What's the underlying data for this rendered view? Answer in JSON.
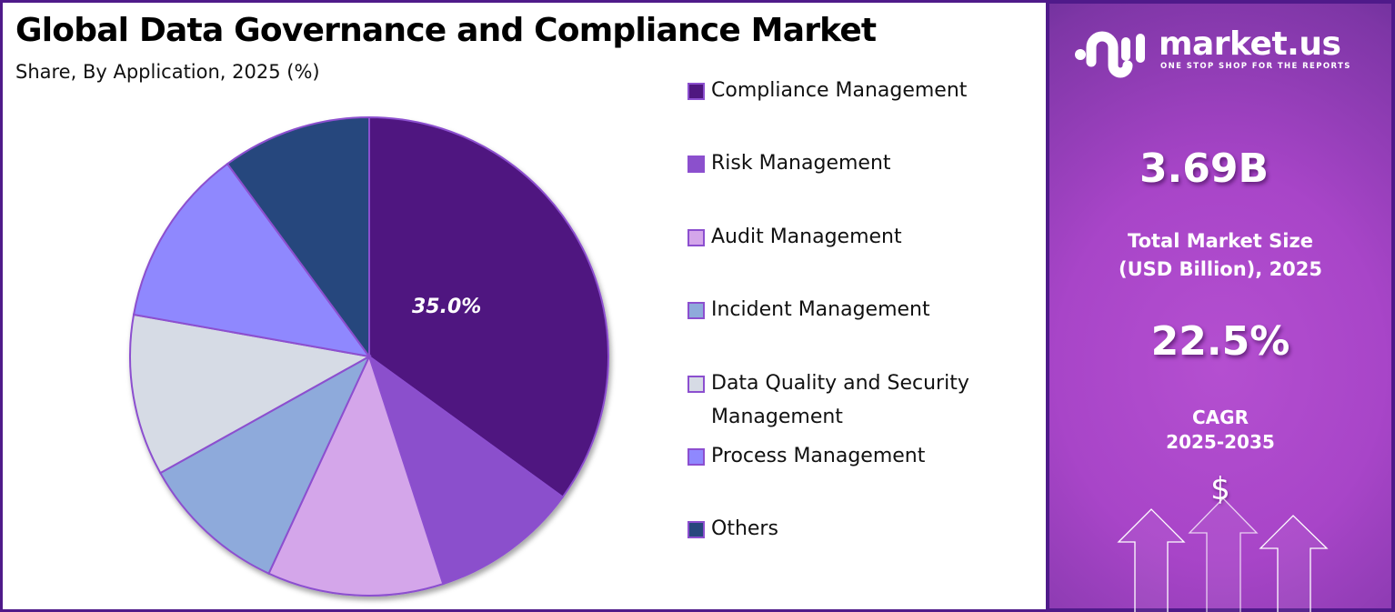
{
  "header": {
    "title": "Global Data Governance and Compliance Market",
    "subtitle": "Share, By Application, 2025 (%)"
  },
  "chart_data": {
    "type": "pie",
    "title": "Global Data Governance and Compliance Market",
    "subtitle": "Share, By Application, 2025 (%)",
    "categories": [
      "Compliance Management",
      "Risk Management",
      "Audit Management",
      "Incident Management",
      "Data Quality and Security Management",
      "Process Management",
      "Others"
    ],
    "values": [
      35.0,
      10.0,
      11.9,
      10.0,
      10.9,
      12.1,
      10.1
    ],
    "colors": [
      "#4f1780",
      "#8b50cc",
      "#d4a6ea",
      "#8eaadb",
      "#d6dbe5",
      "#8f88fe",
      "#27477d"
    ],
    "data_labels": [
      {
        "category": "Compliance Management",
        "text": "35.0%"
      }
    ],
    "start_angle": 0,
    "direction": "clockwise",
    "legend_position": "right"
  },
  "pie": {
    "highlight_label": "35.0%"
  },
  "legend": {
    "items": [
      {
        "label": "Compliance Management",
        "color": "#4f1780"
      },
      {
        "label": "Risk Management",
        "color": "#8b50cc"
      },
      {
        "label": "Audit Management",
        "color": "#d4a6ea"
      },
      {
        "label": "Incident Management",
        "color": "#8eaadb"
      },
      {
        "label": "Data Quality and Security Management",
        "color": "#d6dbe5"
      },
      {
        "label": "Process Management",
        "color": "#8f88fe"
      },
      {
        "label": "Others",
        "color": "#27477d"
      }
    ]
  },
  "sidebar": {
    "brand": "market.us",
    "tagline": "ONE STOP SHOP FOR THE REPORTS",
    "market_size_value": "3.69B",
    "market_size_caption_line1": "Total Market Size",
    "market_size_caption_line2": "(USD Billion), 2025",
    "cagr_value": "22.5%",
    "cagr_caption_line1": "CAGR",
    "cagr_caption_line2": "2025-2035",
    "currency_symbol": "$"
  },
  "colors": {
    "border": "#4f1a8a",
    "slice_stroke": "#8c4fcf",
    "panel_gradient_top": "#5b2a8e",
    "panel_gradient_mid": "#b44fd0"
  }
}
